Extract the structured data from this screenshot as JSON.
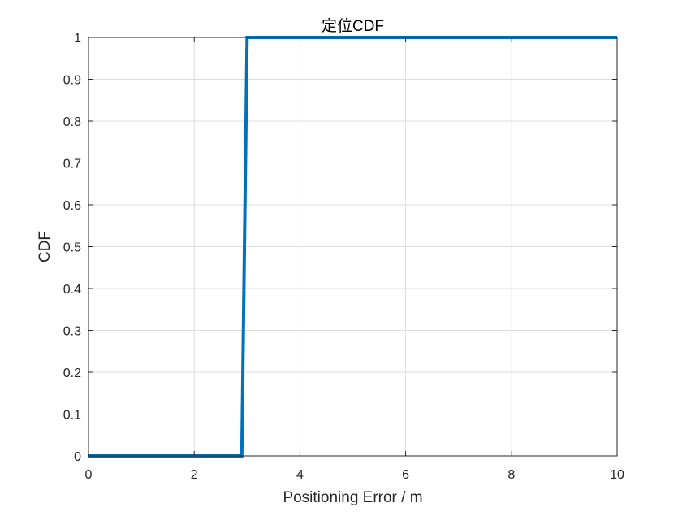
{
  "chart_data": {
    "type": "line",
    "title": "定位CDF",
    "xlabel": "Positioning Error / m",
    "ylabel": "CDF",
    "xlim": [
      0,
      10
    ],
    "ylim": [
      0,
      1
    ],
    "xticks": [
      0,
      2,
      4,
      6,
      8,
      10
    ],
    "xtick_labels": [
      "0",
      "2",
      "4",
      "6",
      "8",
      "10"
    ],
    "yticks": [
      0,
      0.1,
      0.2,
      0.3,
      0.4,
      0.5,
      0.6,
      0.7,
      0.8,
      0.9,
      1
    ],
    "ytick_labels": [
      "0",
      "0.1",
      "0.2",
      "0.3",
      "0.4",
      "0.5",
      "0.6",
      "0.7",
      "0.8",
      "0.9",
      "1"
    ],
    "grid": true,
    "series": [
      {
        "x": [
          0,
          2.9,
          3.0,
          10
        ],
        "y": [
          0,
          0,
          1,
          1
        ],
        "color": "#0072BD"
      }
    ]
  }
}
